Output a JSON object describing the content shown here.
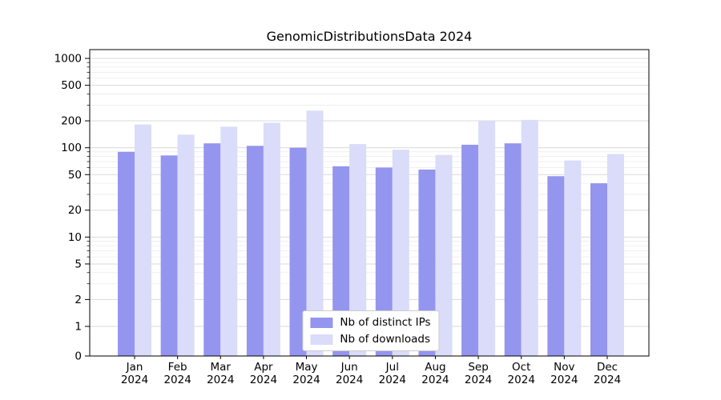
{
  "figure": {
    "background": "#ffffff"
  },
  "chart_data": {
    "type": "bar",
    "title": "GenomicDistributionsData 2024",
    "categories": [
      "Jan",
      "Feb",
      "Mar",
      "Apr",
      "May",
      "Jun",
      "Jul",
      "Aug",
      "Sep",
      "Oct",
      "Nov",
      "Dec"
    ],
    "category_year": "2024",
    "series": [
      {
        "name": "Nb of distinct IPs",
        "color": "#9395ee",
        "values": [
          90,
          82,
          112,
          105,
          100,
          62,
          60,
          57,
          108,
          112,
          48,
          40
        ]
      },
      {
        "name": "Nb of downloads",
        "color": "#dadcf9",
        "values": [
          182,
          140,
          172,
          190,
          260,
          110,
          95,
          83,
          200,
          205,
          72,
          85
        ]
      }
    ],
    "xlabel": "",
    "ylabel": "",
    "yscale": "symlog",
    "y_ticks": [
      0,
      1,
      2,
      5,
      10,
      20,
      50,
      100,
      200,
      500,
      1000
    ],
    "y_minor_ticks": [
      3,
      4,
      6,
      7,
      8,
      9,
      30,
      40,
      60,
      70,
      80,
      90,
      300,
      400,
      600,
      700,
      800,
      900
    ],
    "ylim": [
      0,
      1250
    ],
    "grid": true,
    "legend_position": "lower center",
    "colors": {
      "axis": "#000000",
      "grid_major": "#d9d9d9",
      "grid_minor": "#ececec",
      "text": "#000000"
    }
  }
}
